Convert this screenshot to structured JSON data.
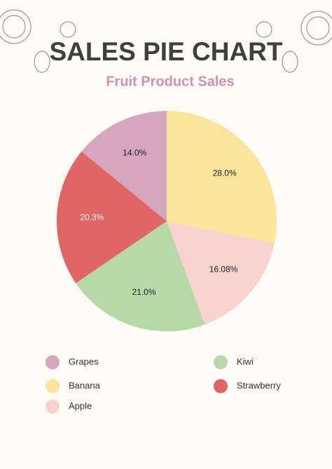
{
  "chart_data": {
    "type": "pie",
    "title": "SALES PIE CHART",
    "subtitle": "Fruit Product Sales",
    "categories": [
      "Banana",
      "Apple",
      "Kiwi",
      "Strawberry",
      "Grapes"
    ],
    "values": [
      28.0,
      16.08,
      21.0,
      20.3,
      14.0
    ],
    "value_labels": [
      "28.0%",
      "16.08%",
      "21.0%",
      "20.3%",
      "14.0%"
    ],
    "colors": [
      "#fbe59a",
      "#f9d3cd",
      "#b7d9a8",
      "#e06666",
      "#d5a6bd"
    ],
    "legend": "bottom"
  }
}
